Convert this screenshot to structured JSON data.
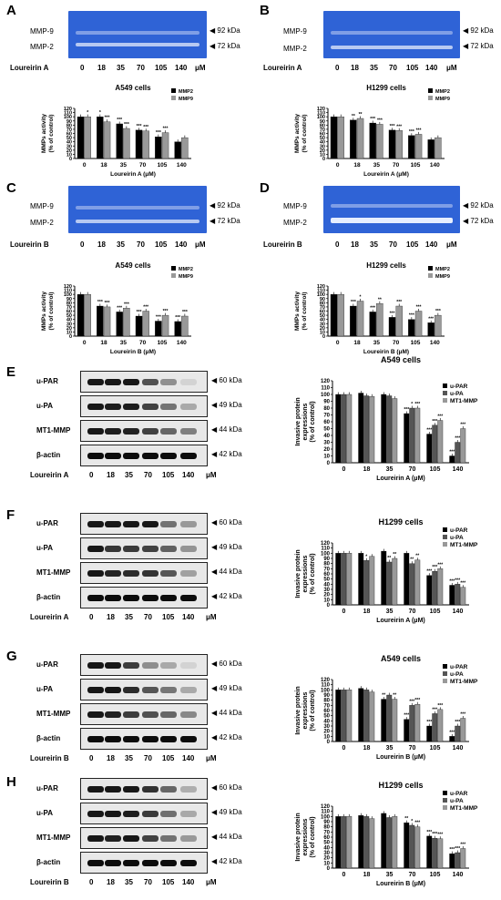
{
  "panels": {
    "A": {
      "letter": "A",
      "row1": "MMP-9",
      "row2": "MMP-2",
      "kda1": "92 kDa",
      "kda2": "72 kDa",
      "compound": "Loureirin A",
      "concs": [
        "0",
        "18",
        "35",
        "70",
        "105",
        "140"
      ],
      "unit": "μM"
    },
    "B": {
      "letter": "B",
      "row1": "MMP-9",
      "row2": "MMP-2",
      "kda1": "92 kDa",
      "kda2": "72 kDa",
      "compound": "Loureirin A",
      "concs": [
        "0",
        "18",
        "35",
        "70",
        "105",
        "140"
      ],
      "unit": "μM"
    },
    "C": {
      "letter": "C",
      "row1": "MMP-9",
      "row2": "MMP-2",
      "kda1": "92 kDa",
      "kda2": "72 kDa",
      "compound": "Loureirin B",
      "concs": [
        "0",
        "18",
        "35",
        "70",
        "105",
        "140"
      ],
      "unit": "μM"
    },
    "D": {
      "letter": "D",
      "row1": "MMP-9",
      "row2": "MMP-2",
      "kda1": "92 kDa",
      "kda2": "72 kDa",
      "compound": "Loureirin B",
      "concs": [
        "0",
        "18",
        "35",
        "70",
        "105",
        "140"
      ],
      "unit": "μM"
    },
    "E": {
      "letter": "E",
      "proteins": [
        "u-PAR",
        "u-PA",
        "MT1-MMP",
        "β-actin"
      ],
      "kdas": [
        "60 kDa",
        "49 kDa",
        "44 kDa",
        "42 kDa"
      ],
      "compound": "Loureirin A",
      "concs": [
        "0",
        "18",
        "35",
        "70",
        "105",
        "140"
      ],
      "unit": "μM"
    },
    "F": {
      "letter": "F",
      "proteins": [
        "u-PAR",
        "u-PA",
        "MT1-MMP",
        "β-actin"
      ],
      "kdas": [
        "60 kDa",
        "49 kDa",
        "44 kDa",
        "42 kDa"
      ],
      "compound": "Loureirin A",
      "concs": [
        "0",
        "18",
        "35",
        "70",
        "105",
        "140"
      ],
      "unit": "μM"
    },
    "G": {
      "letter": "G",
      "proteins": [
        "u-PAR",
        "u-PA",
        "MT1-MMP",
        "β-actin"
      ],
      "kdas": [
        "60 kDa",
        "49 kDa",
        "44 kDa",
        "42 kDa"
      ],
      "compound": "Loureirin B",
      "concs": [
        "0",
        "18",
        "35",
        "70",
        "105",
        "140"
      ],
      "unit": "μM"
    },
    "H": {
      "letter": "H",
      "proteins": [
        "u-PAR",
        "u-PA",
        "MT1-MMP",
        "β-actin"
      ],
      "kdas": [
        "60 kDa",
        "49 kDa",
        "44 kDa",
        "42 kDa"
      ],
      "compound": "Loureirin B",
      "concs": [
        "0",
        "18",
        "35",
        "70",
        "105",
        "140"
      ],
      "unit": "μM"
    }
  },
  "colors": {
    "gel_bg": "#2f63d6",
    "band_light": "#9fb8f0",
    "bar_dark": "#000000",
    "bar_mid": "#555555",
    "bar_light": "#999999"
  },
  "chart_data": [
    {
      "id": "A",
      "type": "bar",
      "title": "A549 cells",
      "ylabel": "MMPs activity\n(% of control)",
      "xlabel": "Loureirin A (μM)",
      "categories": [
        "0",
        "18",
        "35",
        "70",
        "105",
        "140"
      ],
      "ylim": [
        0,
        120
      ],
      "yticks": [
        0,
        10,
        20,
        30,
        40,
        50,
        60,
        70,
        80,
        90,
        100,
        110,
        120
      ],
      "series": [
        {
          "name": "MMP2",
          "color": "#000000",
          "values": [
            100,
            100,
            83,
            68,
            52,
            40
          ]
        },
        {
          "name": "MMP9",
          "color": "#999999",
          "values": [
            100,
            88,
            72,
            66,
            62,
            50
          ]
        }
      ],
      "sig": [
        [
          "",
          "*"
        ],
        [
          "*",
          "***"
        ],
        [
          "***",
          "***"
        ],
        [
          "***",
          "***"
        ],
        [
          "***",
          "***"
        ],
        [
          "",
          ""
        ]
      ]
    },
    {
      "id": "B",
      "type": "bar",
      "title": "H1299 cells",
      "ylabel": "MMPs activity\n(% of control)",
      "xlabel": "Loureirin A (μM)",
      "categories": [
        "0",
        "18",
        "35",
        "70",
        "105",
        "140"
      ],
      "ylim": [
        0,
        120
      ],
      "yticks": [
        0,
        10,
        20,
        30,
        40,
        50,
        60,
        70,
        80,
        90,
        100,
        110,
        120
      ],
      "series": [
        {
          "name": "MMP2",
          "color": "#000000",
          "values": [
            100,
            92,
            85,
            68,
            55,
            45
          ]
        },
        {
          "name": "MMP9",
          "color": "#999999",
          "values": [
            100,
            96,
            82,
            67,
            58,
            50
          ]
        }
      ],
      "sig": [
        [
          "",
          ""
        ],
        [
          "**",
          "**"
        ],
        [
          "***",
          "***"
        ],
        [
          "***",
          "***"
        ],
        [
          "***",
          "***"
        ],
        [
          "",
          ""
        ]
      ]
    },
    {
      "id": "C",
      "type": "bar",
      "title": "A549 cells",
      "ylabel": "MMPs activity\n(% of control)",
      "xlabel": "Loureirin B (μM)",
      "categories": [
        "0",
        "18",
        "35",
        "70",
        "105",
        "140"
      ],
      "ylim": [
        0,
        120
      ],
      "yticks": [
        0,
        10,
        20,
        30,
        40,
        50,
        60,
        70,
        80,
        90,
        100,
        110,
        120
      ],
      "series": [
        {
          "name": "MMP2",
          "color": "#000000",
          "values": [
            100,
            72,
            58,
            48,
            36,
            35
          ]
        },
        {
          "name": "MMP9",
          "color": "#999999",
          "values": [
            100,
            70,
            67,
            60,
            50,
            48
          ]
        }
      ],
      "sig": [
        [
          "",
          ""
        ],
        [
          "***",
          "***"
        ],
        [
          "***",
          "***"
        ],
        [
          "***",
          "***"
        ],
        [
          "***",
          "***"
        ],
        [
          "***",
          "***"
        ]
      ]
    },
    {
      "id": "D",
      "type": "bar",
      "title": "H1299 cells",
      "ylabel": "MMPs activity\n(% of control)",
      "xlabel": "Loureirin B (μM)",
      "categories": [
        "0",
        "18",
        "35",
        "70",
        "105",
        "140"
      ],
      "ylim": [
        0,
        120
      ],
      "yticks": [
        0,
        10,
        20,
        30,
        40,
        50,
        60,
        70,
        80,
        90,
        100,
        110,
        120
      ],
      "series": [
        {
          "name": "MMP2",
          "color": "#000000",
          "values": [
            100,
            72,
            58,
            45,
            40,
            32
          ]
        },
        {
          "name": "MMP9",
          "color": "#999999",
          "values": [
            100,
            84,
            78,
            72,
            60,
            50
          ]
        }
      ],
      "sig": [
        [
          "",
          ""
        ],
        [
          "***",
          "*"
        ],
        [
          "***",
          "**"
        ],
        [
          "***",
          "***"
        ],
        [
          "***",
          "***"
        ],
        [
          "***",
          "***"
        ]
      ]
    },
    {
      "id": "E",
      "type": "bar",
      "title": "A549 cells",
      "ylabel": "Invasive protein\nexpressions\n(% of control)",
      "xlabel": "Loureirin A (μM)",
      "categories": [
        "0",
        "18",
        "35",
        "70",
        "105",
        "140"
      ],
      "ylim": [
        0,
        120
      ],
      "yticks": [
        0,
        10,
        20,
        30,
        40,
        50,
        60,
        70,
        80,
        90,
        100,
        110,
        120
      ],
      "series": [
        {
          "name": "u-PAR",
          "color": "#000000",
          "values": [
            100,
            102,
            100,
            72,
            42,
            10
          ]
        },
        {
          "name": "u-PA",
          "color": "#555555",
          "values": [
            100,
            98,
            98,
            80,
            55,
            30
          ]
        },
        {
          "name": "MT1-MMP",
          "color": "#999999",
          "values": [
            100,
            97,
            94,
            80,
            62,
            50
          ]
        }
      ],
      "sig": [
        [
          "",
          "",
          ""
        ],
        [
          "",
          "",
          ""
        ],
        [
          "",
          "",
          ""
        ],
        [
          "***",
          "*",
          "***"
        ],
        [
          "***",
          "***",
          "***"
        ],
        [
          "***",
          "***",
          "***"
        ]
      ]
    },
    {
      "id": "F",
      "type": "bar",
      "title": "H1299 cells",
      "ylabel": "Invasive protein\nexpressions\n(% of control)",
      "xlabel": "Loureirin A (μM)",
      "categories": [
        "0",
        "18",
        "35",
        "70",
        "105",
        "140"
      ],
      "ylim": [
        0,
        120
      ],
      "yticks": [
        0,
        10,
        20,
        30,
        40,
        50,
        60,
        70,
        80,
        90,
        100,
        110,
        120
      ],
      "series": [
        {
          "name": "u-PAR",
          "color": "#000000",
          "values": [
            100,
            100,
            104,
            100,
            57,
            38
          ]
        },
        {
          "name": "u-PA",
          "color": "#555555",
          "values": [
            100,
            86,
            83,
            80,
            65,
            40
          ]
        },
        {
          "name": "MT1-MMP",
          "color": "#999999",
          "values": [
            100,
            94,
            90,
            87,
            70,
            34
          ]
        }
      ],
      "sig": [
        [
          "",
          "",
          ""
        ],
        [
          "",
          "*",
          ""
        ],
        [
          "",
          "**",
          "**"
        ],
        [
          "",
          "**",
          "**"
        ],
        [
          "***",
          "***",
          "***"
        ],
        [
          "***",
          "***",
          "***"
        ]
      ]
    },
    {
      "id": "G",
      "type": "bar",
      "title": "A549 cells",
      "ylabel": "Invasive protein\nexpressions\n(% of control)",
      "xlabel": "Loureirin B (μM)",
      "categories": [
        "0",
        "18",
        "35",
        "70",
        "105",
        "140"
      ],
      "ylim": [
        0,
        120
      ],
      "yticks": [
        0,
        10,
        20,
        30,
        40,
        50,
        60,
        70,
        80,
        90,
        100,
        110,
        120
      ],
      "series": [
        {
          "name": "u-PAR",
          "color": "#000000",
          "values": [
            100,
            103,
            82,
            43,
            30,
            10
          ]
        },
        {
          "name": "u-PA",
          "color": "#555555",
          "values": [
            100,
            100,
            90,
            70,
            54,
            30
          ]
        },
        {
          "name": "MT1-MMP",
          "color": "#999999",
          "values": [
            100,
            96,
            82,
            72,
            62,
            45
          ]
        }
      ],
      "sig": [
        [
          "",
          "",
          ""
        ],
        [
          "",
          "",
          ""
        ],
        [
          "**",
          "",
          "**"
        ],
        [
          "***",
          "***",
          "***"
        ],
        [
          "***",
          "***",
          "***"
        ],
        [
          "***",
          "***",
          "***"
        ]
      ]
    },
    {
      "id": "H",
      "type": "bar",
      "title": "H1299 cells",
      "ylabel": "Invasive protein\nexpressions\n(% of control)",
      "xlabel": "Loureirin B (μM)",
      "categories": [
        "0",
        "18",
        "35",
        "70",
        "105",
        "140"
      ],
      "ylim": [
        0,
        120
      ],
      "yticks": [
        0,
        10,
        20,
        30,
        40,
        50,
        60,
        70,
        80,
        90,
        100,
        110,
        120
      ],
      "series": [
        {
          "name": "u-PAR",
          "color": "#000000",
          "values": [
            100,
            102,
            106,
            88,
            62,
            28
          ]
        },
        {
          "name": "u-PA",
          "color": "#555555",
          "values": [
            100,
            100,
            98,
            83,
            58,
            30
          ]
        },
        {
          "name": "MT1-MMP",
          "color": "#999999",
          "values": [
            100,
            96,
            100,
            80,
            57,
            38
          ]
        }
      ],
      "sig": [
        [
          "",
          "",
          ""
        ],
        [
          "",
          "",
          ""
        ],
        [
          "",
          "",
          ""
        ],
        [
          "**",
          "*",
          "***"
        ],
        [
          "***",
          "***",
          "***"
        ],
        [
          "***",
          "***",
          "***"
        ]
      ]
    }
  ]
}
